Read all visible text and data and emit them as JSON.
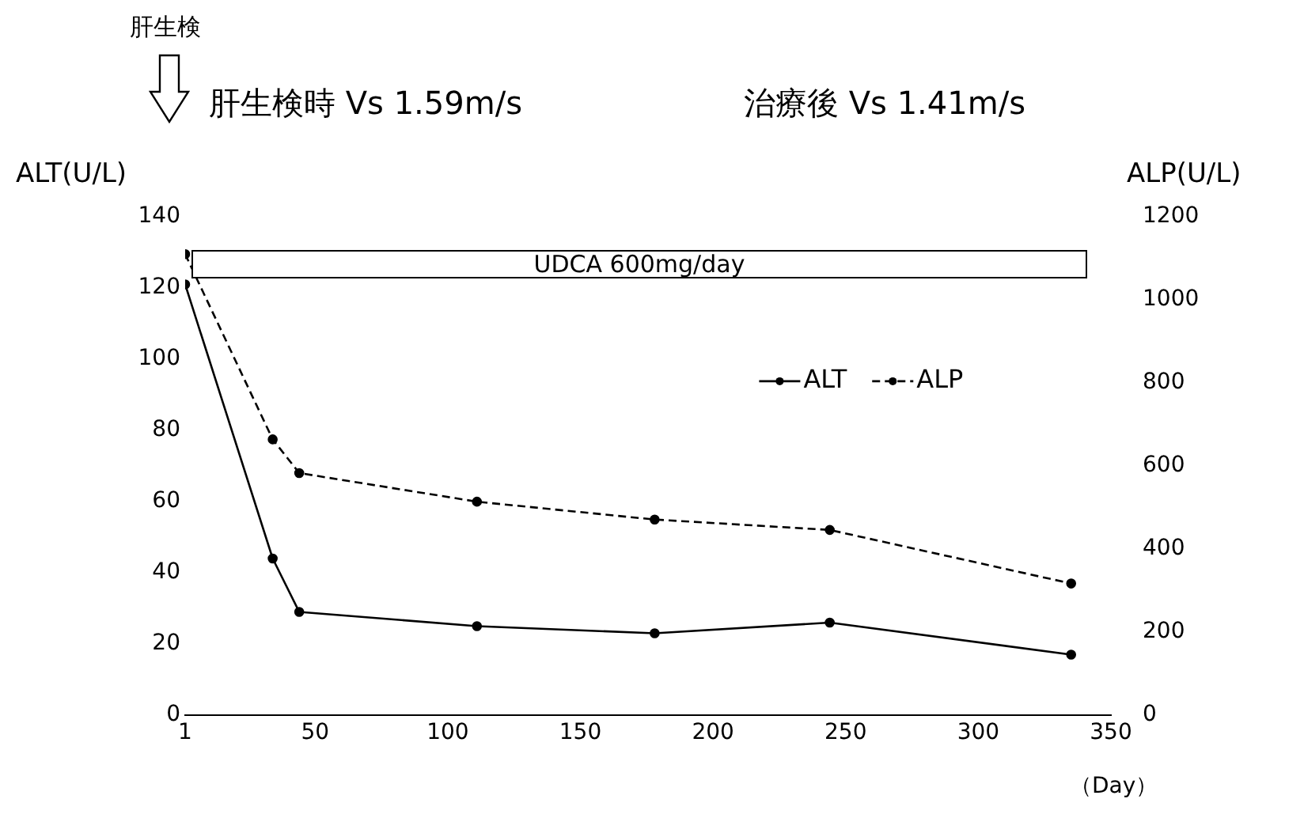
{
  "chart_data": {
    "type": "line",
    "xlabel": "（Day）",
    "ylabel": "ALT(U/L)",
    "y2label": "ALP(U/L)",
    "x": [
      1,
      34,
      44,
      111,
      178,
      244,
      335
    ],
    "series": [
      {
        "name": "ALT",
        "color": "#000000",
        "values": [
          121,
          44,
          29,
          25,
          23,
          26,
          17
        ],
        "line_style": "solid"
      },
      {
        "name": "ALP",
        "color": "#000000",
        "values": [
          1110,
          664,
          583,
          514,
          471,
          446,
          317
        ],
        "axis": "y2",
        "line_style": "dashed"
      }
    ],
    "xlim": [
      1,
      350
    ],
    "xticks": [
      1,
      50,
      100,
      150,
      200,
      250,
      300,
      350
    ],
    "ylim": [
      0,
      140
    ],
    "yticks": [
      0,
      20,
      40,
      60,
      80,
      100,
      120,
      140
    ],
    "y2lim": [
      0,
      1200
    ],
    "y2ticks": [
      0,
      200,
      400,
      600,
      800,
      1000,
      1200
    ],
    "annotations": [
      "肝生検",
      "肝生検時 Vs 1.59m/s",
      "治療後 Vs 1.41m/s",
      "UDCA 600mg/day"
    ],
    "grid": false,
    "legend": "right",
    "marker": "circle"
  }
}
